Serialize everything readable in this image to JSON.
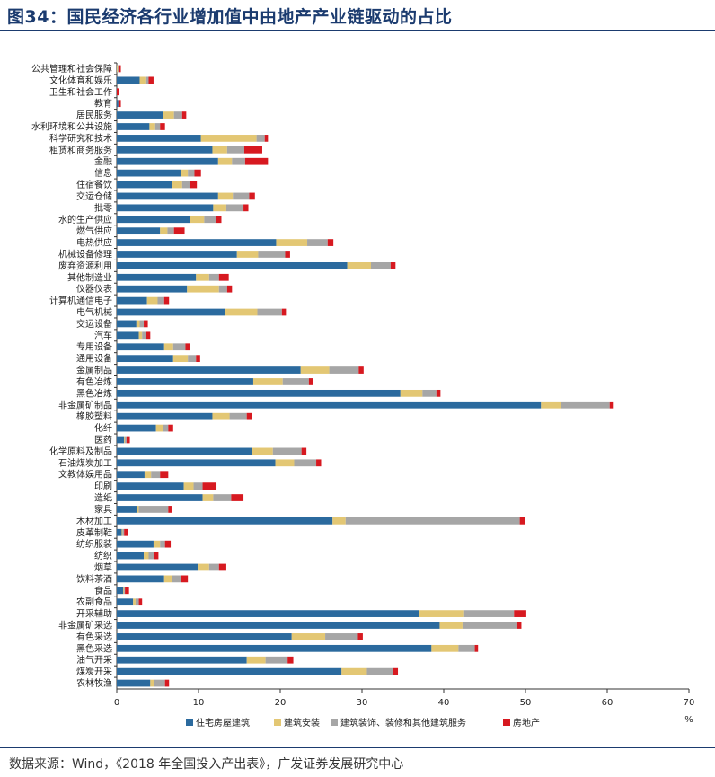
{
  "title": "图34：国民经济各行业增加值中由地产产业链驱动的占比",
  "source": "数据来源：Wind，《2018 年全国投入产出表》，广发证券发展研究中心",
  "colors": {
    "住宅房屋建筑": "#2b6a9e",
    "建筑安装": "#e3c774",
    "建筑装饰、装修和其他建筑服务": "#a6a6a6",
    "房地产": "#d71920",
    "title": "#1b3b6f"
  },
  "chart_data": {
    "type": "bar",
    "orientation": "horizontal",
    "stacked": true,
    "x_unit": "%",
    "xlim": [
      0,
      70
    ],
    "x_ticks": [
      0,
      10,
      20,
      30,
      40,
      50,
      60,
      70
    ],
    "legend_position": "bottom",
    "categories": [
      "公共管理和社会保障",
      "文化体育和娱乐",
      "卫生和社会工作",
      "教育",
      "居民服务",
      "水利环境和公共设施",
      "科学研究和技术",
      "租赁和商务服务",
      "金融",
      "信息",
      "住宿餐饮",
      "交运仓储",
      "批零",
      "水的生产供应",
      "燃气供应",
      "电热供应",
      "机械设备修理",
      "废弃资源利用",
      "其他制造业",
      "仪器仪表",
      "计算机通信电子",
      "电气机械",
      "交运设备",
      "汽车",
      "专用设备",
      "通用设备",
      "金属制品",
      "有色冶炼",
      "黑色冶炼",
      "非金属矿制品",
      "橡胶塑料",
      "化纤",
      "医药",
      "化学原料及制品",
      "石油煤炭加工",
      "文教体娱用品",
      "印刷",
      "造纸",
      "家具",
      "木材加工",
      "皮革制鞋",
      "纺织服装",
      "纺织",
      "烟草",
      "饮料茶酒",
      "食品",
      "农副食品",
      "开采辅助",
      "非金属矿采选",
      "有色采选",
      "黑色采选",
      "油气开采",
      "煤炭开采",
      "农林牧渔"
    ],
    "series": [
      {
        "name": "住宅房屋建筑",
        "values": [
          0,
          2.8,
          0,
          0.2,
          5.7,
          4,
          10.3,
          11.7,
          12.4,
          7.8,
          6.8,
          12.4,
          11.8,
          9,
          5.3,
          19.5,
          14.7,
          28.2,
          9.7,
          8.6,
          3.7,
          13.2,
          2.4,
          2.7,
          5.8,
          6.9,
          22.5,
          16.7,
          34.7,
          51.9,
          11.7,
          4.8,
          0.9,
          16.5,
          19.4,
          3.4,
          8.2,
          10.5,
          2.5,
          26.4,
          0.6,
          4.5,
          3.3,
          9.9,
          5.8,
          0.8,
          2,
          37,
          39.5,
          21.4,
          38.5,
          15.9,
          27.5,
          4.1
        ]
      },
      {
        "name": "建筑安装",
        "values": [
          0.1,
          0.7,
          0,
          0,
          1.3,
          0.7,
          6.8,
          1.8,
          1.7,
          0.9,
          1.2,
          1.8,
          1.6,
          1.7,
          0.9,
          3.8,
          2.6,
          2.9,
          1.6,
          3.9,
          1.3,
          4,
          0.4,
          0.4,
          1.1,
          1.8,
          3.5,
          3.6,
          2.7,
          2.4,
          2.1,
          0.9,
          0.1,
          2.6,
          2.3,
          0.8,
          1.2,
          1.3,
          0.2,
          1.6,
          0.1,
          0.8,
          0.6,
          1.4,
          1,
          0.1,
          0.3,
          5.5,
          2.8,
          4.1,
          3.3,
          2.3,
          3.1,
          0.5
        ]
      },
      {
        "name": "建筑装饰、装修和其他建筑服务",
        "values": [
          0.1,
          0.4,
          0,
          0,
          1,
          0.6,
          1,
          2.1,
          1.6,
          0.8,
          0.9,
          2,
          2.1,
          1.4,
          0.8,
          2.5,
          3.3,
          2.4,
          1.2,
          1,
          0.8,
          3,
          0.5,
          0.5,
          1.5,
          1,
          3.6,
          3.2,
          1.7,
          6,
          2.1,
          0.6,
          0.2,
          3.5,
          2.7,
          1.1,
          1.1,
          2.2,
          3.6,
          21.3,
          0.2,
          0.6,
          0.6,
          1.2,
          1,
          0.1,
          0.4,
          6.1,
          6.7,
          4,
          2,
          2.7,
          3.2,
          1.3
        ]
      },
      {
        "name": "房地产",
        "values": [
          0.3,
          0.6,
          0.3,
          0.3,
          0.5,
          0.6,
          0.4,
          2.2,
          2.8,
          0.8,
          0.9,
          0.7,
          0.6,
          0.7,
          1.3,
          0.7,
          0.6,
          0.6,
          1.2,
          0.6,
          0.6,
          0.5,
          0.5,
          0.5,
          0.5,
          0.5,
          0.6,
          0.5,
          0.5,
          0.5,
          0.6,
          0.6,
          0.4,
          0.6,
          0.6,
          1,
          1.7,
          1.5,
          0.4,
          0.6,
          0.5,
          0.7,
          0.6,
          0.9,
          0.9,
          0.5,
          0.4,
          1.5,
          0.5,
          0.6,
          0.4,
          0.7,
          0.6,
          0.5
        ]
      }
    ]
  }
}
